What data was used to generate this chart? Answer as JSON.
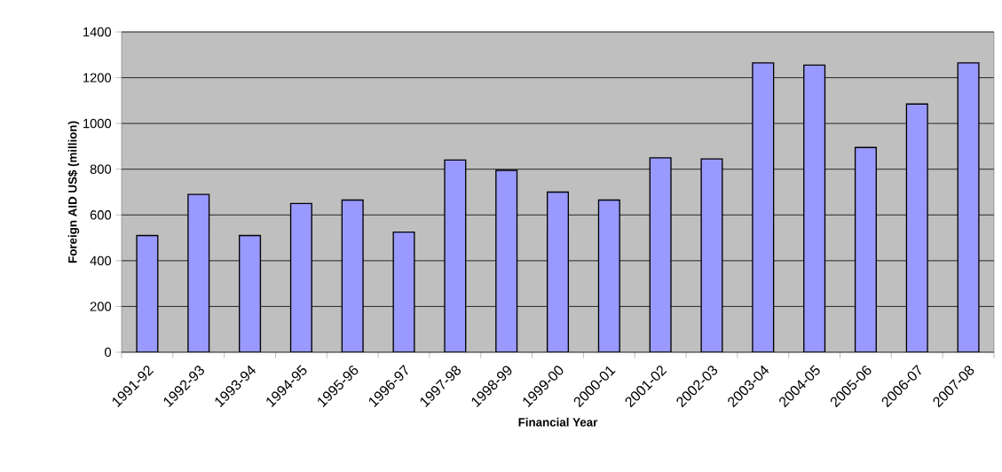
{
  "chart_data": {
    "type": "bar",
    "xlabel": "Financial Year",
    "ylabel": "Foreign AID US$ (million)",
    "categories": [
      "1991-92",
      "1992-93",
      "1993-94",
      "1994-95",
      "1995-96",
      "1996-97",
      "1997-98",
      "1998-99",
      "1999-00",
      "2000-01",
      "2001-02",
      "2002-03",
      "2003-04",
      "2004-05",
      "2005-06",
      "2006-07",
      "2007-08"
    ],
    "values": [
      510,
      690,
      510,
      650,
      665,
      525,
      840,
      795,
      700,
      665,
      850,
      845,
      1265,
      1255,
      895,
      1085,
      1265
    ],
    "color": "#9999ff",
    "ylim": [
      0,
      1400
    ],
    "yticks": [
      0,
      200,
      400,
      600,
      800,
      1000,
      1200,
      1400
    ],
    "grid": "y"
  }
}
